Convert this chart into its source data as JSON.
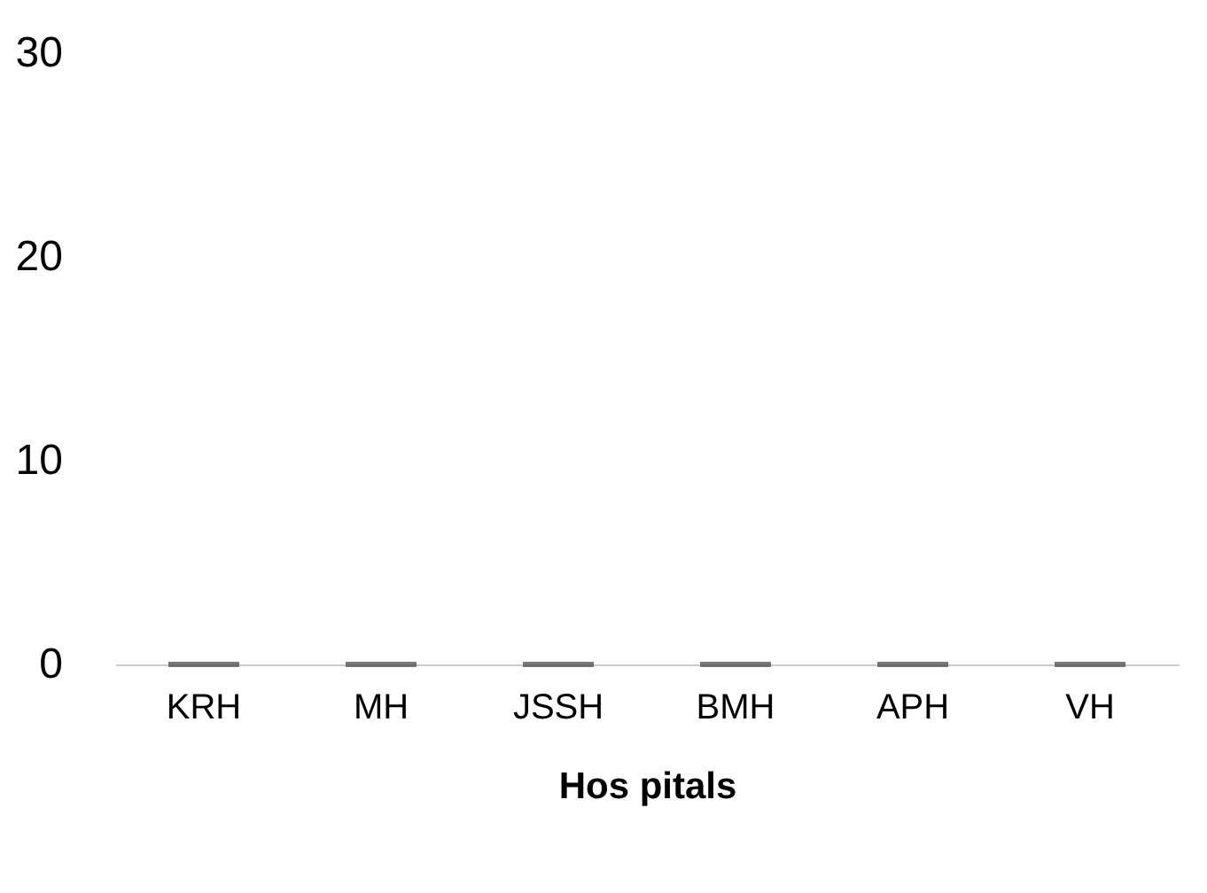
{
  "chart_data": {
    "type": "bar",
    "xlabel": "Hos pitals",
    "categories": [
      "KRH",
      "MH",
      "JSSH",
      "BMH",
      "APH",
      "VH"
    ],
    "values": [
      0,
      0,
      0,
      0,
      0,
      0
    ],
    "color": "#404040",
    "ylim": [
      0,
      30
    ],
    "yticks": [
      0,
      10,
      20,
      30
    ],
    "grid": false
  }
}
